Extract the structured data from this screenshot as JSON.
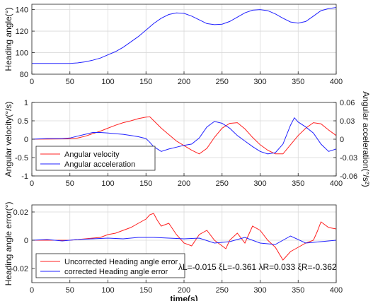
{
  "chart_data": [
    {
      "type": "line",
      "xlabel": "",
      "ylabel": "Heading angle(°)",
      "xlim": [
        0,
        400
      ],
      "ylim": [
        80,
        145
      ],
      "xticks": [
        0,
        50,
        100,
        150,
        200,
        250,
        300,
        350,
        400
      ],
      "yticks": [
        80,
        100,
        120,
        140
      ],
      "grid": true,
      "series": [
        {
          "color": "#2020ff",
          "x": [
            0,
            50,
            60,
            70,
            80,
            90,
            100,
            110,
            120,
            130,
            140,
            150,
            160,
            170,
            180,
            190,
            200,
            210,
            220,
            230,
            240,
            250,
            260,
            270,
            280,
            290,
            300,
            310,
            320,
            330,
            340,
            350,
            360,
            370,
            380,
            390,
            400
          ],
          "y": [
            90,
            90,
            90.5,
            91.5,
            93,
            95,
            98,
            101,
            105,
            110,
            115,
            121,
            127,
            132,
            135.5,
            137,
            136.5,
            134,
            130.5,
            127,
            126,
            126.5,
            129,
            133,
            137,
            139.5,
            140,
            139,
            136,
            132,
            128.5,
            127.5,
            129,
            134,
            139,
            141,
            142
          ]
        }
      ]
    },
    {
      "type": "line",
      "xlabel": "",
      "ylabel": "Angular velocity(°/s)",
      "y2label": "Angular acceleration(°/s²)",
      "xlim": [
        0,
        400
      ],
      "ylim": [
        -1,
        1
      ],
      "y2lim": [
        -0.06,
        0.06
      ],
      "xticks": [
        0,
        50,
        100,
        150,
        200,
        250,
        300,
        350,
        400
      ],
      "yticks": [
        -1,
        -0.5,
        0,
        0.5,
        1
      ],
      "y2ticks": [
        -0.06,
        -0.03,
        0,
        0.03,
        0.06
      ],
      "grid": true,
      "legend": "bottom-left",
      "series": [
        {
          "name": "Angular velocity",
          "color": "#ff2020",
          "axis": "left",
          "x": [
            0,
            50,
            60,
            70,
            80,
            90,
            100,
            110,
            120,
            130,
            140,
            150,
            155,
            170,
            190,
            210,
            220,
            230,
            240,
            250,
            260,
            270,
            280,
            290,
            300,
            310,
            320,
            330,
            340,
            350,
            360,
            370,
            380,
            390,
            400
          ],
          "y": [
            0,
            0.01,
            0.03,
            0.08,
            0.15,
            0.22,
            0.3,
            0.38,
            0.45,
            0.5,
            0.56,
            0.6,
            0.61,
            0.3,
            -0.05,
            -0.3,
            -0.4,
            -0.25,
            0.05,
            0.3,
            0.43,
            0.45,
            0.28,
            0.05,
            -0.15,
            -0.3,
            -0.4,
            -0.4,
            -0.15,
            0.1,
            0.3,
            0.45,
            0.42,
            0.25,
            0.1
          ]
        },
        {
          "name": "Angular acceleration",
          "color": "#2020ff",
          "axis": "right",
          "x": [
            0,
            20,
            40,
            50,
            60,
            70,
            80,
            90,
            100,
            110,
            120,
            130,
            140,
            150,
            155,
            160,
            170,
            180,
            190,
            200,
            210,
            220,
            230,
            240,
            250,
            260,
            265,
            270,
            280,
            290,
            300,
            310,
            320,
            330,
            340,
            345,
            350,
            360,
            370,
            380,
            390,
            400
          ],
          "y": [
            0,
            0.001,
            0.001,
            0.002,
            0.005,
            0.008,
            0.011,
            0.011,
            0.01,
            0.009,
            0.008,
            0.006,
            0.004,
            0.001,
            -0.005,
            -0.012,
            -0.02,
            -0.016,
            -0.013,
            -0.01,
            -0.008,
            0.002,
            0.02,
            0.029,
            0.026,
            0.018,
            0.012,
            0.006,
            -0.003,
            -0.012,
            -0.02,
            -0.024,
            -0.022,
            -0.008,
            0.023,
            0.035,
            0.028,
            0.02,
            0.01,
            -0.008,
            -0.02,
            -0.016
          ]
        }
      ]
    },
    {
      "type": "line",
      "xlabel": "time(s)",
      "ylabel": "Heading angle error(°)",
      "xlim": [
        0,
        400
      ],
      "ylim": [
        -0.03,
        0.025
      ],
      "xticks": [
        0,
        50,
        100,
        150,
        200,
        250,
        300,
        350,
        400
      ],
      "yticks": [
        -0.02,
        0,
        0.02
      ],
      "grid": true,
      "legend": "bottom-left",
      "annotation": "λL=-0.015 ξL=-0.361 λR=0.033 ξR=-0.362",
      "series": [
        {
          "name": "Uncorrected  Heading angle error",
          "color": "#ff2020",
          "x": [
            0,
            50,
            70,
            90,
            100,
            110,
            120,
            130,
            140,
            150,
            155,
            160,
            165,
            170,
            180,
            190,
            200,
            210,
            220,
            230,
            240,
            250,
            255,
            260,
            270,
            280,
            290,
            300,
            310,
            320,
            330,
            340,
            350,
            360,
            370,
            375,
            380,
            390,
            400
          ],
          "y": [
            0,
            0,
            0.001,
            0.002,
            0.004,
            0.005,
            0.007,
            0.009,
            0.012,
            0.015,
            0.018,
            0.019,
            0.014,
            0.01,
            0.012,
            0.004,
            -0.002,
            -0.004,
            0.004,
            0.007,
            0.0,
            -0.004,
            -0.006,
            0.0,
            0.005,
            -0.002,
            0.01,
            0.007,
            0.0,
            -0.005,
            -0.014,
            -0.008,
            -0.005,
            -0.002,
            0.0,
            0.006,
            0.013,
            0.009,
            0.008
          ]
        },
        {
          "name": "corrected  Heading angle error",
          "color": "#2020ff",
          "x": [
            0,
            20,
            40,
            60,
            80,
            100,
            120,
            140,
            160,
            180,
            200,
            220,
            240,
            260,
            280,
            300,
            320,
            340,
            360,
            380,
            400
          ],
          "y": [
            0,
            0.0005,
            -0.0005,
            0.0005,
            0.001,
            0.0015,
            0.001,
            0.002,
            0.002,
            0.0015,
            0.001,
            0.0015,
            -0.002,
            -0.001,
            0.002,
            -0.002,
            -0.003,
            0.003,
            -0.002,
            -0.001,
            0.0
          ]
        }
      ]
    }
  ]
}
